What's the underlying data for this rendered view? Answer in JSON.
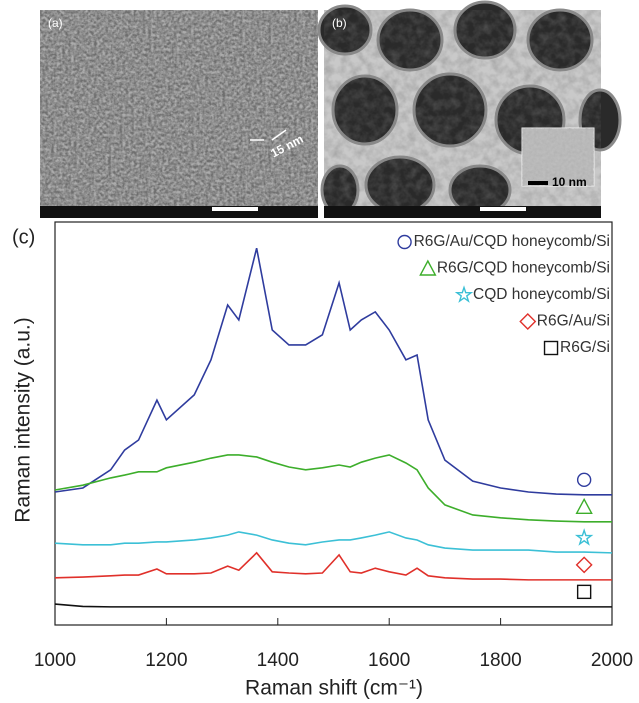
{
  "panels": [
    {
      "label": "(a)",
      "scale_label": "15 nm"
    },
    {
      "label": "(b)",
      "scale_label": "10 nm"
    }
  ],
  "chart_data": {
    "type": "line",
    "label": "(c)",
    "x_label": "Raman shift (cm⁻¹)",
    "y_label": "Raman intensity (a.u.)",
    "x": [
      1000,
      1050,
      1100,
      1125,
      1150,
      1183,
      1200,
      1250,
      1280,
      1310,
      1330,
      1362,
      1390,
      1420,
      1450,
      1480,
      1510,
      1530,
      1550,
      1575,
      1600,
      1630,
      1650,
      1670,
      1700,
      1750,
      1800,
      1850,
      1900,
      1950,
      2000
    ],
    "series": [
      {
        "name": "R6G/Au/CQD honeycomb/Si",
        "color": "#2f3c9e",
        "marker": "circle",
        "values": [
          33.0,
          34.0,
          38.5,
          43.4,
          45.9,
          55.8,
          50.9,
          57.1,
          65.8,
          79.4,
          75.7,
          93.5,
          73.2,
          69.5,
          69.5,
          72.0,
          84.9,
          73.2,
          75.7,
          77.7,
          73.2,
          65.8,
          67.0,
          50.9,
          40.9,
          35.7,
          34.0,
          33.0,
          32.5,
          32.3,
          32.3
        ]
      },
      {
        "name": "R6G/CQD honeycomb/Si",
        "color": "#3dae2b",
        "marker": "triangle",
        "values": [
          33.5,
          34.7,
          36.5,
          37.2,
          38.0,
          38.0,
          39.0,
          40.4,
          41.4,
          42.2,
          42.2,
          41.7,
          40.4,
          39.2,
          38.5,
          39.0,
          39.7,
          39.2,
          40.4,
          41.4,
          42.2,
          40.2,
          38.5,
          34.0,
          29.8,
          27.3,
          26.6,
          26.1,
          25.8,
          25.6,
          25.6
        ]
      },
      {
        "name": "CQD honeycomb/Si",
        "color": "#3cc0d6",
        "marker": "star",
        "values": [
          20.3,
          19.9,
          19.9,
          20.3,
          20.3,
          20.6,
          20.6,
          21.1,
          21.6,
          22.3,
          23.1,
          22.3,
          21.1,
          20.3,
          19.9,
          20.6,
          21.1,
          21.1,
          21.6,
          22.3,
          23.1,
          21.6,
          21.1,
          19.9,
          19.1,
          18.6,
          18.6,
          18.6,
          18.1,
          18.1,
          17.9
        ]
      },
      {
        "name": "R6G/Au/Si",
        "color": "#e0302a",
        "marker": "diamond",
        "values": [
          11.7,
          11.9,
          12.2,
          12.4,
          12.4,
          13.9,
          12.7,
          12.7,
          12.9,
          14.6,
          13.6,
          17.9,
          13.2,
          12.9,
          12.7,
          12.9,
          17.4,
          13.2,
          12.9,
          14.1,
          13.2,
          12.4,
          14.1,
          12.2,
          11.7,
          11.4,
          11.4,
          11.2,
          11.2,
          11.2,
          11.2
        ]
      },
      {
        "name": "R6G/Si",
        "color": "#111111",
        "marker": "square",
        "values": [
          5.2,
          4.6,
          4.5,
          4.5,
          4.5,
          4.5,
          4.5,
          4.5,
          4.5,
          4.5,
          4.5,
          4.5,
          4.5,
          4.5,
          4.5,
          4.5,
          4.5,
          4.5,
          4.5,
          4.5,
          4.5,
          4.5,
          4.5,
          4.5,
          4.5,
          4.5,
          4.5,
          4.5,
          4.5,
          4.5,
          4.5
        ]
      }
    ],
    "xlim": [
      1000,
      2000
    ],
    "xticks": [
      1000,
      1200,
      1400,
      1600,
      1800,
      2000
    ],
    "ylim": [
      0,
      100
    ],
    "legend": "upper right"
  }
}
